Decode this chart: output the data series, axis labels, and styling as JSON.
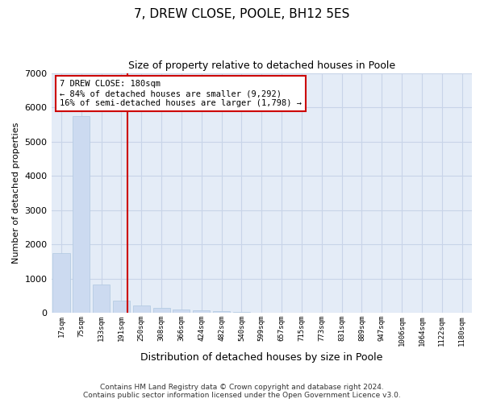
{
  "title": "7, DREW CLOSE, POOLE, BH12 5ES",
  "subtitle": "Size of property relative to detached houses in Poole",
  "xlabel": "Distribution of detached houses by size in Poole",
  "ylabel": "Number of detached properties",
  "annotation_line1": "7 DREW CLOSE: 180sqm",
  "annotation_line2": "← 84% of detached houses are smaller (9,292)",
  "annotation_line3": "16% of semi-detached houses are larger (1,798) →",
  "bar_color": "#ccdaf0",
  "bar_edge_color": "#b0c8e0",
  "vline_color": "#cc0000",
  "annotation_box_color": "#ffffff",
  "annotation_box_edge": "#cc0000",
  "background_color": "#ffffff",
  "plot_bg_color": "#e4ecf7",
  "grid_color": "#c8d4e8",
  "ylim": [
    0,
    7000
  ],
  "yticks": [
    0,
    1000,
    2000,
    3000,
    4000,
    5000,
    6000,
    7000
  ],
  "categories": [
    "17sqm",
    "75sqm",
    "133sqm",
    "191sqm",
    "250sqm",
    "308sqm",
    "366sqm",
    "424sqm",
    "482sqm",
    "540sqm",
    "599sqm",
    "657sqm",
    "715sqm",
    "773sqm",
    "831sqm",
    "889sqm",
    "947sqm",
    "1006sqm",
    "1064sqm",
    "1122sqm",
    "1180sqm"
  ],
  "values": [
    1750,
    5750,
    820,
    355,
    220,
    145,
    110,
    80,
    60,
    25,
    15,
    10,
    8,
    5,
    3,
    2,
    1,
    1,
    0,
    0,
    0
  ],
  "vline_position": 3.3,
  "footer_line1": "Contains HM Land Registry data © Crown copyright and database right 2024.",
  "footer_line2": "Contains public sector information licensed under the Open Government Licence v3.0."
}
